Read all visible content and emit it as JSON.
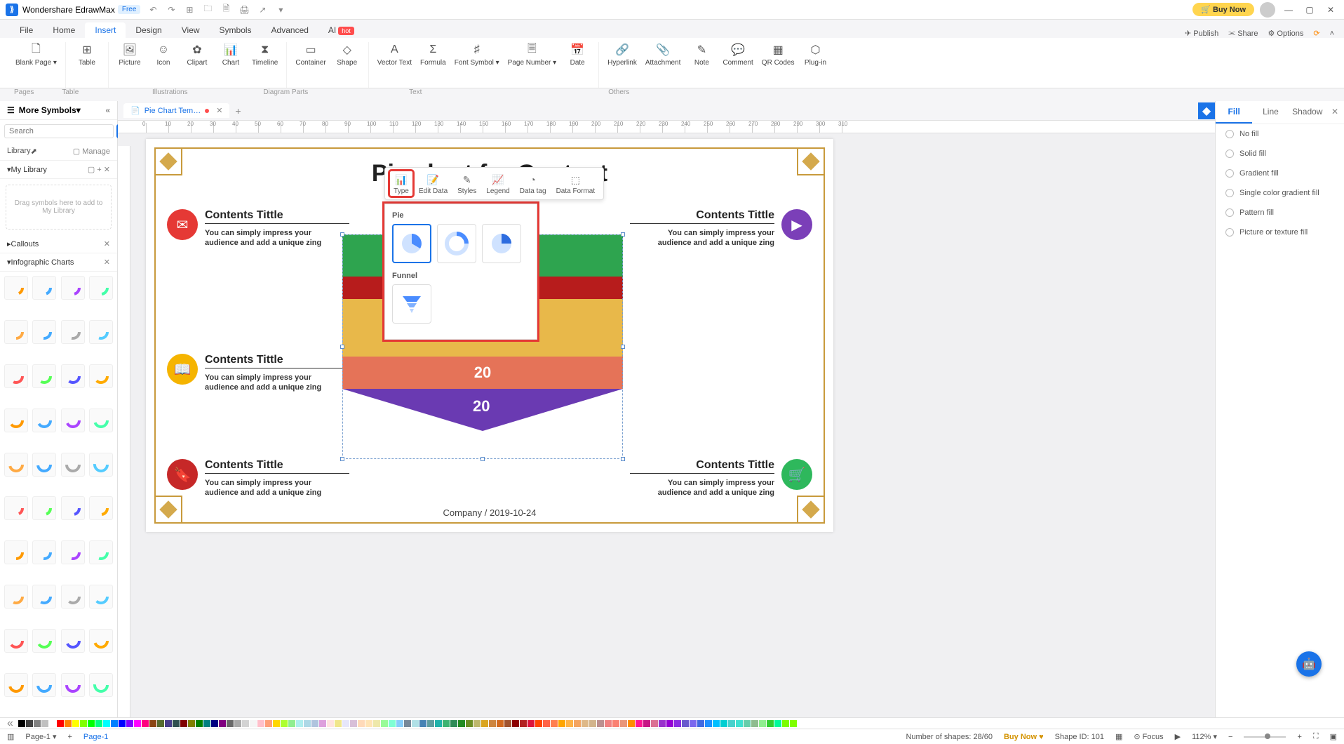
{
  "app": {
    "name": "Wondershare EdrawMax",
    "plan": "Free",
    "buy_now": "Buy Now"
  },
  "menu_tabs": [
    "File",
    "Home",
    "Insert",
    "Design",
    "View",
    "Symbols",
    "Advanced",
    "AI"
  ],
  "menu_active": 2,
  "top_right": {
    "publish": "Publish",
    "share": "Share",
    "options": "Options"
  },
  "ribbon": {
    "pages": [
      {
        "label": "Blank Page ▾"
      }
    ],
    "table": [
      {
        "label": "Table"
      }
    ],
    "illustrations": [
      {
        "label": "Picture"
      },
      {
        "label": "Icon"
      },
      {
        "label": "Clipart"
      },
      {
        "label": "Chart"
      },
      {
        "label": "Timeline"
      }
    ],
    "diagram_parts": [
      {
        "label": "Container"
      },
      {
        "label": "Shape"
      }
    ],
    "text": [
      {
        "label": "Vector Text"
      },
      {
        "label": "Formula"
      },
      {
        "label": "Font Symbol ▾"
      },
      {
        "label": "Page Number ▾"
      },
      {
        "label": "Date"
      }
    ],
    "others": [
      {
        "label": "Hyperlink"
      },
      {
        "label": "Attachment"
      },
      {
        "label": "Note"
      },
      {
        "label": "Comment"
      },
      {
        "label": "QR Codes"
      },
      {
        "label": "Plug-in"
      }
    ],
    "section_labels": {
      "pages": "Pages",
      "table": "Table",
      "illustrations": "Illustrations",
      "diagram_parts": "Diagram Parts",
      "text": "Text",
      "others": "Others"
    }
  },
  "left_panel": {
    "title": "More Symbols",
    "search_placeholder": "Search",
    "search_btn": "Search",
    "library_label": "Library",
    "manage_label": "Manage",
    "my_library": "My Library",
    "drop_hint": "Drag symbols here to add to My Library",
    "callouts": "Callouts",
    "infographic": "Infographic Charts"
  },
  "doc_tab": {
    "title": "Pie Chart Tem…"
  },
  "canvas": {
    "title": "Pie chart for Content",
    "content_title": "Contents Tittle",
    "content_desc1": "You can simply impress your",
    "content_desc2": "audience and add a unique zing",
    "funnel_values": [
      "20",
      "20"
    ],
    "footer": "Company / 2019-10-24",
    "stripe_colors": [
      "#2ea44f",
      "#b71c1c",
      "#e8b84a",
      "#e8b84a",
      "#e8b84a"
    ],
    "band_color": "#e57358",
    "triangle_color": "#6a3ab2",
    "icons": {
      "c1": "#e53935",
      "c2": "#f5b400",
      "c3": "#c62828",
      "c4": "#7b3fb8",
      "c5": "#2eb85c"
    }
  },
  "chart_toolbar": [
    "Type",
    "Edit Data",
    "Styles",
    "Legend",
    "Data tag",
    "Data Format"
  ],
  "type_popup": {
    "pie_label": "Pie",
    "funnel_label": "Funnel"
  },
  "right_panel": {
    "tabs": [
      "Fill",
      "Line",
      "Shadow"
    ],
    "options": [
      "No fill",
      "Solid fill",
      "Gradient fill",
      "Single color gradient fill",
      "Pattern fill",
      "Picture or texture fill"
    ]
  },
  "status": {
    "page_label": "Page-1",
    "page_tab": "Page-1",
    "shapes": "Number of shapes: 28/60",
    "buy": "Buy Now",
    "shape_id": "Shape ID: 101",
    "focus": "Focus",
    "zoom": "112%"
  },
  "ruler_ticks": [
    0,
    10,
    20,
    30,
    40,
    50,
    60,
    70,
    80,
    90,
    100,
    110,
    120,
    130,
    140,
    150,
    160,
    170,
    180,
    190,
    200,
    210,
    220,
    230,
    240,
    250,
    260,
    270,
    280,
    290,
    300,
    310
  ],
  "palette": [
    "#000000",
    "#404040",
    "#808080",
    "#c0c0c0",
    "#ffffff",
    "#ff0000",
    "#ff8000",
    "#ffff00",
    "#80ff00",
    "#00ff00",
    "#00ff80",
    "#00ffff",
    "#0080ff",
    "#0000ff",
    "#8000ff",
    "#ff00ff",
    "#ff0080",
    "#8b4513",
    "#556b2f",
    "#483d8b",
    "#2f4f4f",
    "#800000",
    "#808000",
    "#008000",
    "#008080",
    "#000080",
    "#800080",
    "#696969",
    "#a9a9a9",
    "#d3d3d3",
    "#f5f5f5",
    "#ffc0cb",
    "#ffa07a",
    "#ffd700",
    "#adff2f",
    "#90ee90",
    "#afeeee",
    "#add8e6",
    "#b0c4de",
    "#dda0dd",
    "#ffe4e1",
    "#f0e68c",
    "#e6e6fa",
    "#d8bfd8",
    "#ffdab9",
    "#ffe4b5",
    "#eee8aa",
    "#98fb98",
    "#7fffd4",
    "#87cefa",
    "#778899",
    "#b0e0e6",
    "#4682b4",
    "#5f9ea0",
    "#20b2aa",
    "#3cb371",
    "#2e8b57",
    "#228b22",
    "#6b8e23",
    "#bdb76b",
    "#daa520",
    "#cd853f",
    "#d2691e",
    "#a0522d",
    "#8b0000",
    "#b22222",
    "#dc143c",
    "#ff4500",
    "#ff6347",
    "#ff7f50",
    "#ffa500",
    "#ffb347",
    "#f4a460",
    "#deb887",
    "#d2b48c",
    "#bc8f8f",
    "#f08080",
    "#fa8072",
    "#e9967a",
    "#ff8c00",
    "#ff1493",
    "#c71585",
    "#db7093",
    "#9932cc",
    "#9400d3",
    "#8a2be2",
    "#6a5acd",
    "#7b68ee",
    "#4169e1",
    "#1e90ff",
    "#00bfff",
    "#00ced1",
    "#48d1cc",
    "#40e0d0",
    "#66cdaa",
    "#8fbc8f",
    "#90ee90",
    "#32cd32",
    "#00fa9a",
    "#7cfc00",
    "#7fff00"
  ]
}
